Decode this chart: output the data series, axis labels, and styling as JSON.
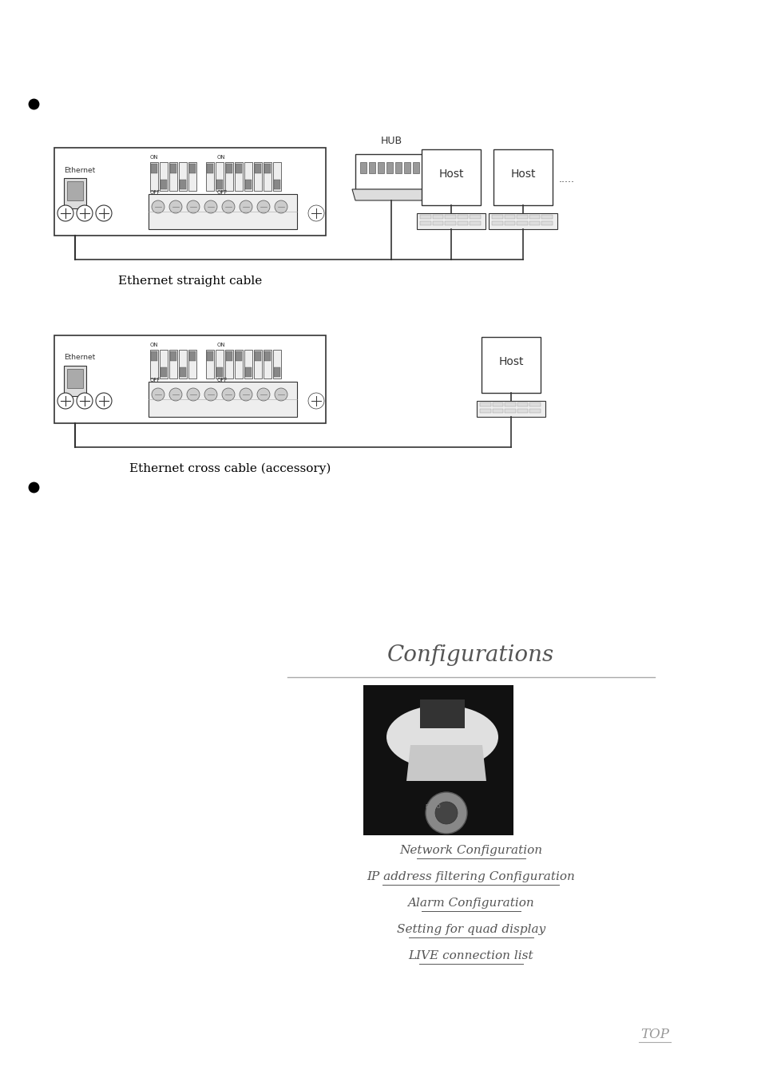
{
  "bg_color": "#ffffff",
  "bullet_color": "#000000",
  "diagram1_label": "Ethernet straight cable",
  "diagram2_label": "Ethernet cross cable (accessory)",
  "configurations_title": "Configurations",
  "link_lines": [
    "Network Configuration",
    "IP address filtering Configuration",
    "Alarm Configuration",
    "Setting for quad display",
    "LIVE connection list"
  ],
  "top_label": "TOP"
}
